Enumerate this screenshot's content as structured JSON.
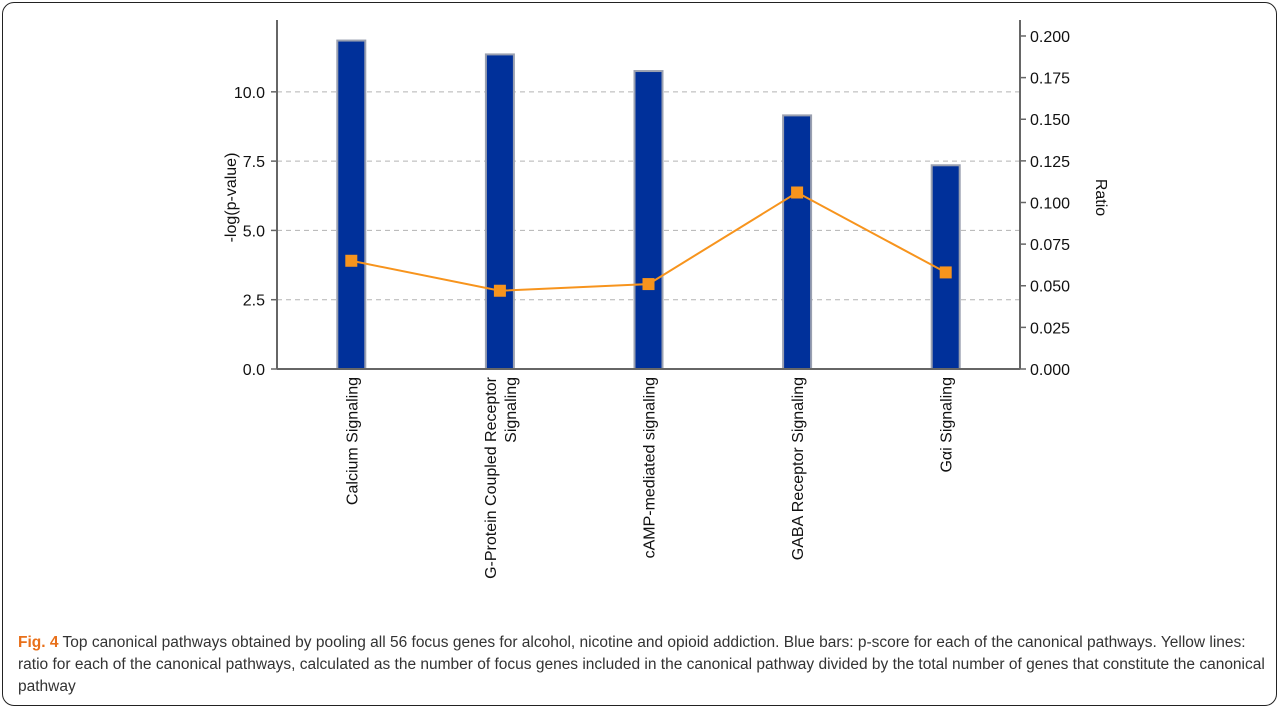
{
  "chart_data": {
    "type": "bar",
    "categories": [
      "Calcium Signaling",
      "G-Protein Coupled Receptor Signaling",
      "cAMP-mediated signaling",
      "GABA Receptor Signaling",
      "Gαi Signaling"
    ],
    "category_label_lines": [
      [
        "Calcium Signaling"
      ],
      [
        "G-Protein Coupled Receptor",
        "Signaling"
      ],
      [
        "cAMP-mediated signaling"
      ],
      [
        "GABA Receptor Signaling"
      ],
      [
        "Gαi Signaling"
      ]
    ],
    "series": [
      {
        "type": "bar",
        "axis": "left",
        "values": [
          11.85,
          11.35,
          10.75,
          9.15,
          7.35
        ],
        "color": "#00309a"
      },
      {
        "type": "line",
        "axis": "right",
        "values": [
          0.065,
          0.047,
          0.051,
          0.106,
          0.058
        ],
        "color": "#f7941d"
      }
    ],
    "ylabel": "-log(p-value)",
    "ylabel_right": "Ratio",
    "ylim": [
      0,
      12.375
    ],
    "ylim_right": [
      0,
      0.206
    ],
    "yticks": [
      "0.0",
      "2.5",
      "5.0",
      "7.5",
      "10.0"
    ],
    "yticks_right": [
      "0.000",
      "0.025",
      "0.050",
      "0.075",
      "0.100",
      "0.125",
      "0.150",
      "0.175",
      "0.200"
    ],
    "grid": true
  },
  "caption": {
    "label": "Fig. 4",
    "text": "Top canonical pathways obtained by pooling all 56 focus genes for alcohol, nicotine and opioid addiction. Blue bars: p-score for each of the canonical pathways. Yellow lines: ratio for each of the canonical pathways, calculated as the number of focus genes included in the canonical pathway divided by the total number of genes that constitute the canonical pathway"
  }
}
